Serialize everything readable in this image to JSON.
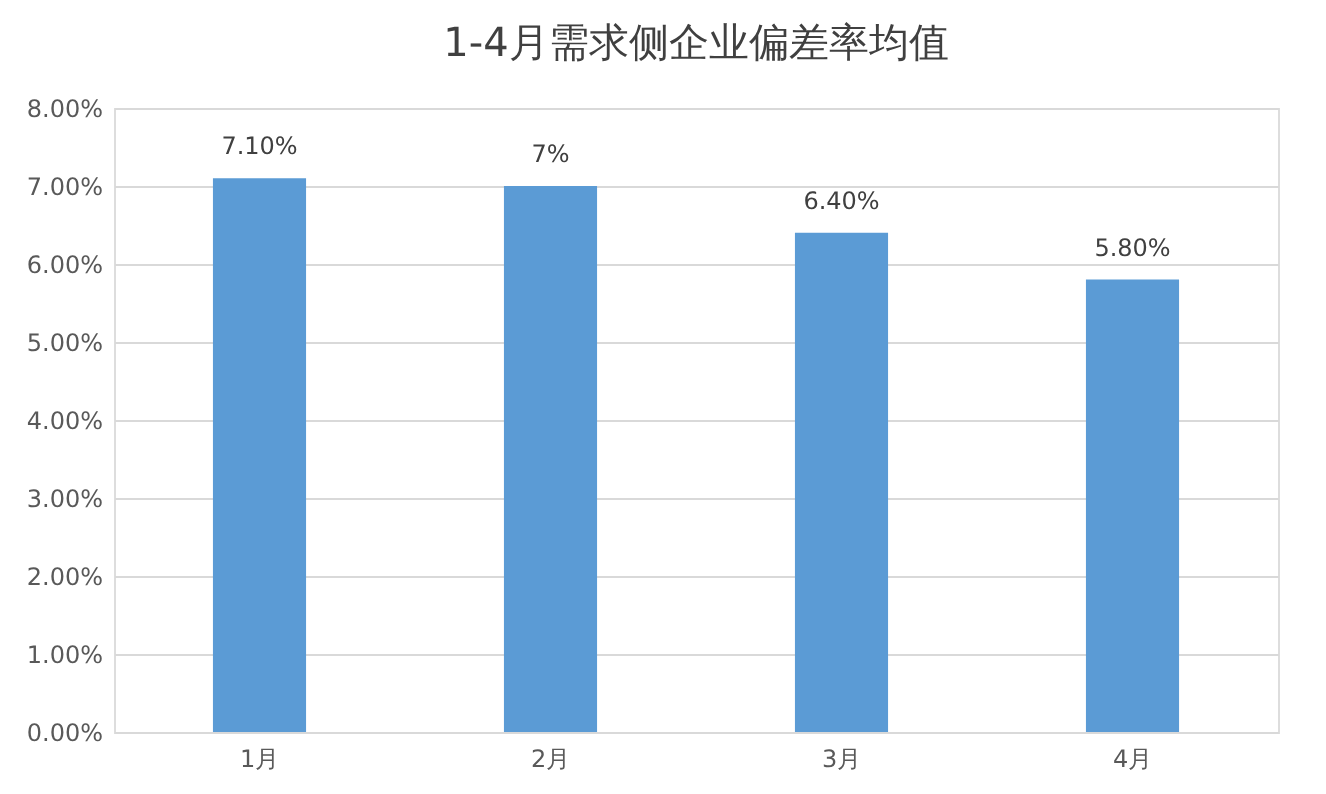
{
  "chart_data": {
    "type": "bar",
    "title": "1-4月需求侧企业偏差率均值",
    "categories": [
      "1月",
      "2月",
      "3月",
      "4月"
    ],
    "values": [
      7.1,
      7,
      6.4,
      5.8
    ],
    "value_labels": [
      "7.10%",
      "7%",
      "6.40%",
      "5.80%"
    ],
    "color": "#5b9bd5",
    "ylim": [
      0,
      8
    ],
    "yticks": [
      {
        "value": 0,
        "label": "0.00%"
      },
      {
        "value": 1,
        "label": "1.00%"
      },
      {
        "value": 2,
        "label": "2.00%"
      },
      {
        "value": 3,
        "label": "3.00%"
      },
      {
        "value": 4,
        "label": "4.00%"
      },
      {
        "value": 5,
        "label": "5.00%"
      },
      {
        "value": 6,
        "label": "6.00%"
      },
      {
        "value": 7,
        "label": "7.00%"
      },
      {
        "value": 8,
        "label": "8.00%"
      }
    ],
    "grid": "y"
  }
}
